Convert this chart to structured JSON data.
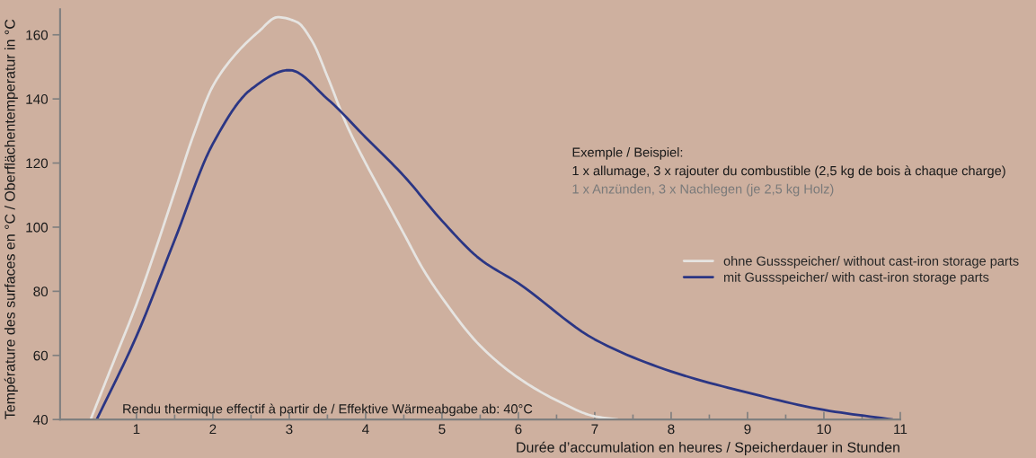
{
  "chart_data": {
    "type": "line",
    "xlabel": "Durée d’accumulation en heures / Speicherdauer in Stunden",
    "ylabel": "Température des surfaces en °C / Oberflächentemperatur in °C",
    "annotations": [
      "Exemple / Beispiel:",
      "1 x allumage, 3 x rajouter du combustible (2,5 kg de bois à chaque charge)",
      "1 x Anzünden, 3 x Nachlegen (je 2,5 kg Holz)",
      "Rendu thermique effectif à partir de / Effektive Wärmeabgabe ab: 40°C"
    ],
    "series": [
      {
        "name": "ohne Gussspeicher/ without cast-iron storage parts",
        "color": "#e6e4e1",
        "x": [
          0.4,
          0.7,
          1.0,
          1.25,
          1.5,
          1.75,
          2.0,
          2.3,
          2.6,
          2.85,
          3.1,
          3.3,
          3.5,
          3.75,
          4.0,
          4.25,
          4.5,
          4.75,
          5.0,
          5.5,
          6.0,
          6.5,
          7.0,
          7.3
        ],
        "values": [
          40,
          58,
          76,
          93,
          111,
          129,
          144,
          154,
          161,
          165.5,
          164,
          158,
          147,
          132,
          120,
          109,
          98,
          87,
          78,
          63,
          53,
          46,
          41,
          40
        ]
      },
      {
        "name": "mit Gussspeicher/ with cast-iron storage parts",
        "color": "#2b3684",
        "x": [
          0.48,
          1.0,
          1.5,
          2.0,
          2.5,
          3.0,
          3.5,
          4.0,
          4.5,
          5.0,
          5.5,
          6.0,
          7.0,
          8.0,
          9.0,
          10.0,
          10.9
        ],
        "values": [
          40,
          66,
          96,
          126,
          143,
          149,
          140,
          128,
          116,
          102,
          90,
          82.5,
          65,
          55,
          48.4,
          43,
          40
        ]
      }
    ],
    "xlim": [
      0,
      11
    ],
    "ylim": [
      40,
      168
    ],
    "xticks": [
      1,
      {
        "value": 1.5,
        "label": null
      },
      2,
      {
        "value": 2.5,
        "label": null
      },
      3,
      {
        "value": 3.5,
        "label": null
      },
      4,
      {
        "value": 4.5,
        "label": null
      },
      5,
      {
        "value": 5.5,
        "label": null
      },
      6,
      {
        "value": 6.5,
        "label": null
      },
      7,
      {
        "value": 7.5,
        "label": null
      },
      8,
      {
        "value": 8.5,
        "label": null
      },
      9,
      {
        "value": 9.5,
        "label": null
      },
      10,
      {
        "value": 10.5,
        "label": null
      },
      11
    ],
    "yticks": [
      40,
      60,
      80,
      100,
      120,
      140,
      160
    ],
    "legend": "right",
    "marker": "none",
    "line_style": "solid"
  }
}
